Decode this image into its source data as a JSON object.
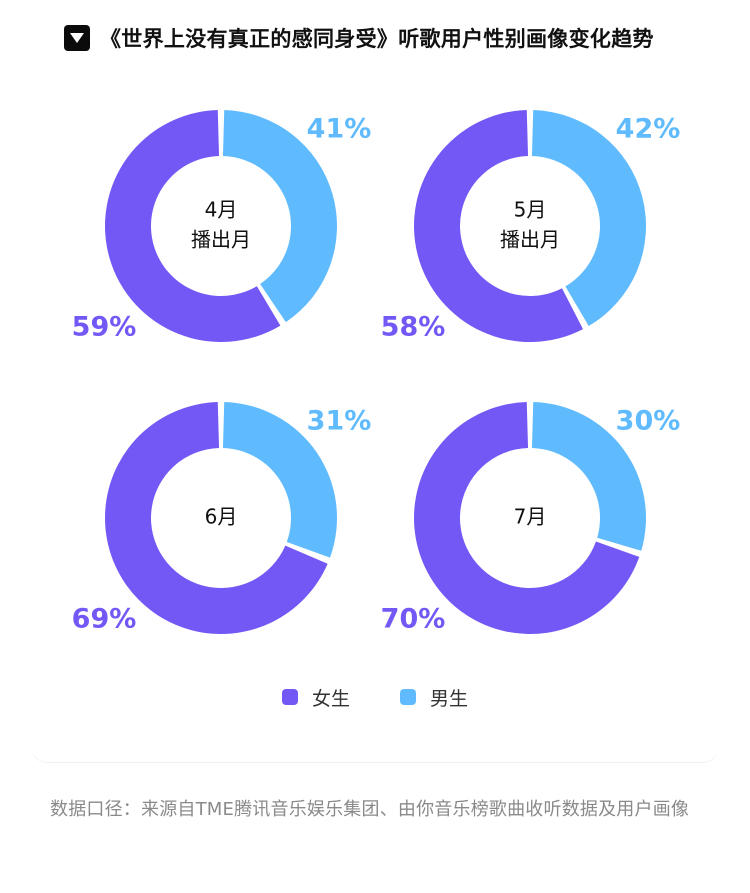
{
  "header": {
    "title": "《世界上没有真正的感同身受》听歌用户性别画像变化趋势",
    "icon": "triangle-down-icon"
  },
  "colors": {
    "female": "#7458f6",
    "male": "#5fbbfd",
    "title": "#111111",
    "footer": "#8a8a8a"
  },
  "chart_data": {
    "type": "pie",
    "subtype": "donut",
    "legend_position": "bottom",
    "legend": [
      "女生",
      "男生"
    ],
    "charts": [
      {
        "center": [
          "4月",
          "播出月"
        ],
        "female": 59,
        "male": 41,
        "female_label": "59%",
        "male_label": "41%"
      },
      {
        "center": [
          "5月",
          "播出月"
        ],
        "female": 58,
        "male": 42,
        "female_label": "58%",
        "male_label": "42%"
      },
      {
        "center": [
          "6月"
        ],
        "female": 69,
        "male": 31,
        "female_label": "69%",
        "male_label": "31%"
      },
      {
        "center": [
          "7月"
        ],
        "female": 70,
        "male": 30,
        "female_label": "70%",
        "male_label": "30%"
      }
    ]
  },
  "footer": {
    "note": "数据口径：来源自TME腾讯音乐娱乐集团、由你音乐榜歌曲收听数据及用户画像"
  }
}
